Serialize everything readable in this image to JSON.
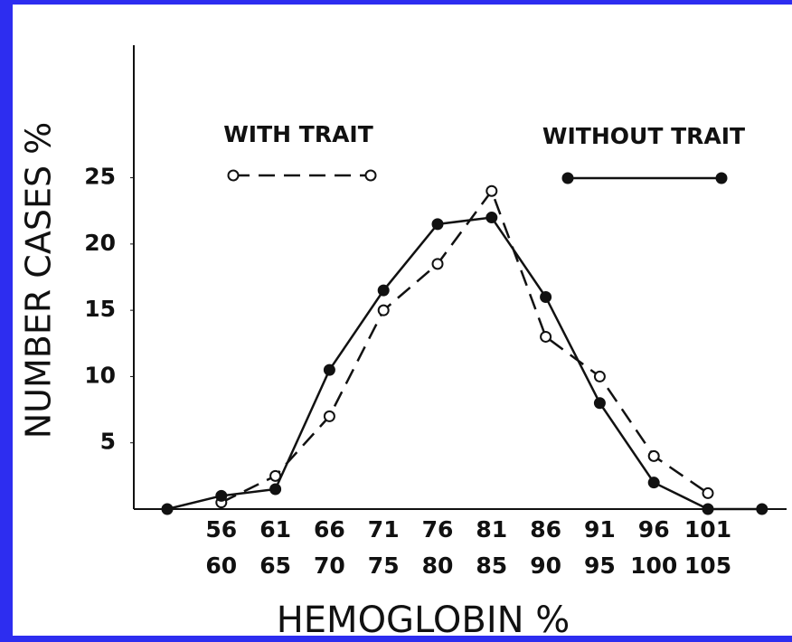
{
  "chart_data": {
    "type": "line",
    "xlabel": "HEMOGLOBIN %",
    "ylabel": "NUMBER CASES %",
    "categories": [
      null,
      [
        "56",
        "60"
      ],
      [
        "61",
        "65"
      ],
      [
        "66",
        "70"
      ],
      [
        "71",
        "75"
      ],
      [
        "76",
        "80"
      ],
      [
        "81",
        "85"
      ],
      [
        "86",
        "90"
      ],
      [
        "91",
        "95"
      ],
      [
        "96",
        "100"
      ],
      [
        "101",
        "105"
      ],
      null
    ],
    "series": [
      {
        "name": "WITH TRAIT",
        "color": "#111111",
        "dash": true,
        "marker": "open",
        "values": [
          null,
          0.5,
          2.5,
          7,
          15,
          18.5,
          24,
          13,
          10,
          4,
          1.2,
          null
        ]
      },
      {
        "name": "WITHOUT TRAIT",
        "color": "#111111",
        "dash": false,
        "marker": "filled",
        "values": [
          0,
          1,
          1.5,
          10.5,
          16.5,
          21.5,
          22,
          16,
          8,
          2,
          0,
          0
        ]
      }
    ],
    "ylim": [
      0,
      35
    ],
    "yticks": [
      5,
      10,
      15,
      20,
      25
    ],
    "grid": false
  }
}
